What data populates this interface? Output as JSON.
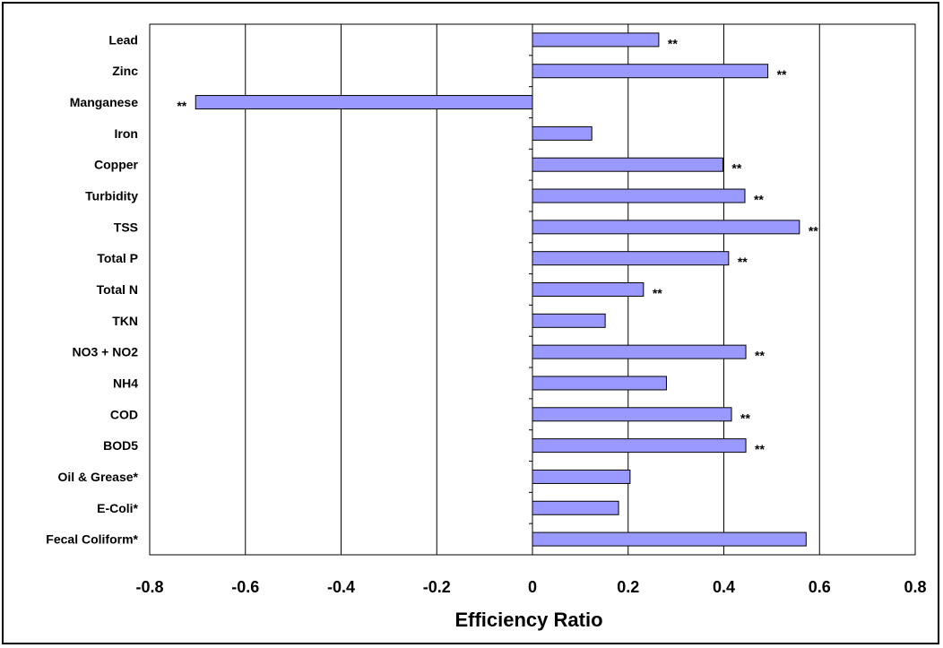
{
  "chart_data": {
    "type": "bar",
    "orientation": "horizontal",
    "title": "",
    "xlabel": "Efficiency Ratio",
    "ylabel": "",
    "xlim": [
      -0.8,
      0.8
    ],
    "xticks": [
      "-0.8",
      "-0.6",
      "-0.4",
      "-0.2",
      "0",
      "0.2",
      "0.4",
      "0.6",
      "0.8"
    ],
    "grid": "vertical",
    "bar_color": "#9999ff",
    "categories": [
      "Lead",
      "Zinc",
      "Manganese",
      "Iron",
      "Copper",
      "Turbidity",
      "TSS",
      "Total P",
      "Total N",
      "TKN",
      "NO3 + NO2",
      "NH4",
      "COD",
      "BOD5",
      "Oil & Grease*",
      "E-Coli*",
      "Fecal Coliform*"
    ],
    "values": [
      0.264,
      0.492,
      -0.704,
      0.124,
      0.398,
      0.444,
      0.558,
      0.41,
      0.232,
      0.152,
      0.446,
      0.28,
      0.416,
      0.446,
      0.204,
      0.18,
      0.572
    ],
    "annotations": [
      "**",
      "**",
      "**",
      "",
      "**",
      "**",
      "**",
      "**",
      "**",
      "",
      "**",
      "",
      "**",
      "**",
      "",
      "",
      ""
    ]
  }
}
